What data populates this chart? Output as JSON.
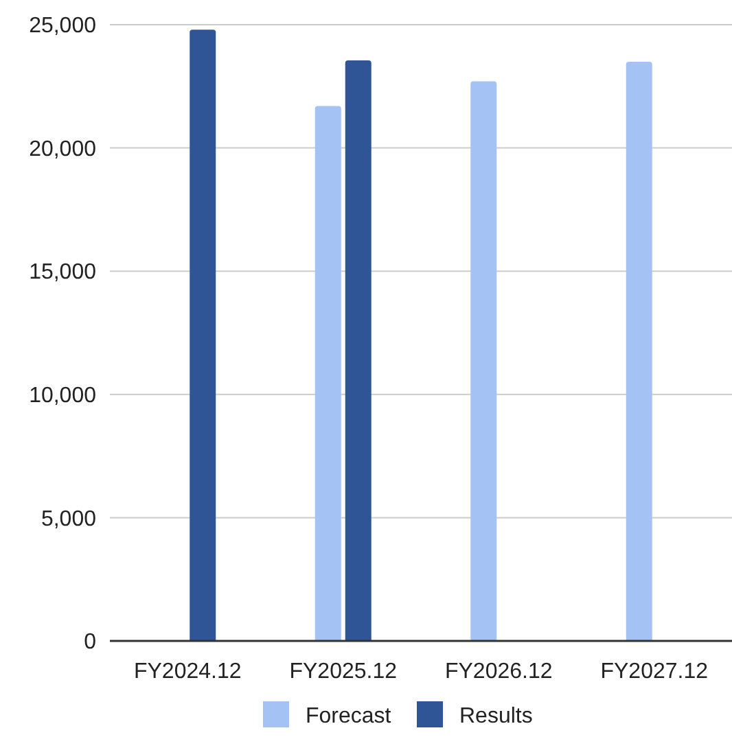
{
  "chart_data": {
    "type": "bar",
    "categories": [
      "FY2024.12",
      "FY2025.12",
      "FY2026.12",
      "FY2027.12"
    ],
    "series": [
      {
        "name": "Forecast",
        "color": "#a4c2f4",
        "values": [
          null,
          21700,
          22700,
          23500
        ]
      },
      {
        "name": "Results",
        "color": "#2f5597",
        "values": [
          24800,
          23550,
          null,
          null
        ]
      }
    ],
    "ylim": [
      0,
      25000
    ],
    "yticks": [
      {
        "value": 0,
        "label": "0"
      },
      {
        "value": 5000,
        "label": "5,000"
      },
      {
        "value": 10000,
        "label": "10,000"
      },
      {
        "value": 15000,
        "label": "15,000"
      },
      {
        "value": 20000,
        "label": "20,000"
      },
      {
        "value": 25000,
        "label": "25,000"
      }
    ],
    "grid": "y",
    "legend": "bottom"
  }
}
